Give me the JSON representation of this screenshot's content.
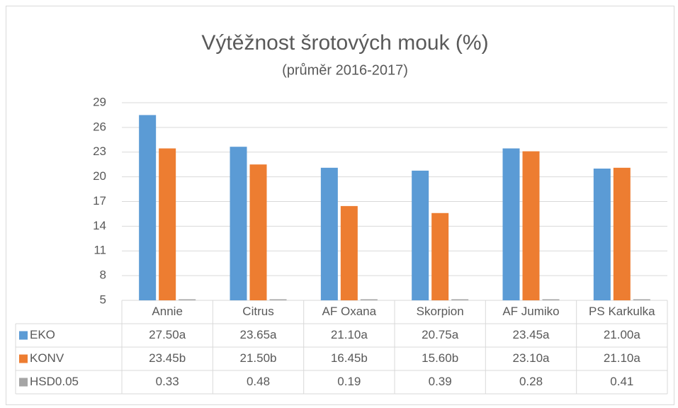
{
  "chart_data": {
    "type": "bar",
    "title": "Výtěžnost šrotových mouk (%)",
    "subtitle": "(průměr 2016-2017)",
    "categories": [
      "Annie",
      "Citrus",
      "AF Oxana",
      "Skorpion",
      "AF Jumiko",
      "PS Karkulka"
    ],
    "series": [
      {
        "name": "EKO",
        "color": "#5b9bd5",
        "values": [
          27.5,
          23.65,
          21.1,
          20.75,
          23.45,
          21.0
        ],
        "value_labels": [
          "27.50a",
          "23.65a",
          "21.10a",
          "20.75a",
          "23.45a",
          "21.00a"
        ]
      },
      {
        "name": "KONV",
        "color": "#ed7d31",
        "values": [
          23.45,
          21.5,
          16.45,
          15.6,
          23.1,
          21.1
        ],
        "value_labels": [
          "23.45b",
          "21.50b",
          "16.45b",
          "15.60b",
          "23.10a",
          "21.10a"
        ]
      },
      {
        "name": "HSD0.05",
        "color": "#a5a5a5",
        "values": [
          0.33,
          0.48,
          0.19,
          0.39,
          0.28,
          0.41
        ]
      }
    ],
    "ylim": [
      5,
      29
    ],
    "yticks": [
      5,
      8,
      11,
      14,
      17,
      20,
      23,
      26,
      29
    ],
    "grid": true
  }
}
